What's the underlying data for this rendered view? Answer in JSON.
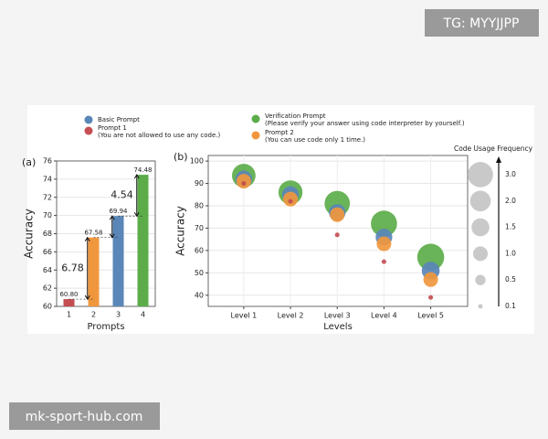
{
  "watermarks": [
    "TG: MYYJJPP",
    "mk-sport-hub.com"
  ],
  "chart_data": [
    {
      "type": "bar",
      "panel": "(a)",
      "xlabel": "Prompts",
      "ylabel": "Accuracy",
      "categories": [
        "1",
        "2",
        "3",
        "4"
      ],
      "values": [
        60.8,
        67.58,
        69.94,
        74.48
      ],
      "value_labels": [
        "60.80",
        "67.58",
        "69.94",
        "74.48"
      ],
      "colors": [
        "#c44e52",
        "#f0973d",
        "#5a86b8",
        "#5cad4a"
      ],
      "ylim": [
        60,
        76
      ],
      "yticks": [
        60,
        62,
        64,
        66,
        68,
        70,
        72,
        74,
        76
      ],
      "annotations": [
        "6.78",
        "4.54"
      ],
      "grid": true
    },
    {
      "type": "bubble",
      "panel": "(b)",
      "xlabel": "Levels",
      "ylabel": "Accuracy",
      "categories": [
        "Level 1",
        "Level 2",
        "Level 3",
        "Level 4",
        "Level 5"
      ],
      "ylim": [
        35,
        102.5
      ],
      "yticks": [
        40,
        50,
        60,
        70,
        80,
        90,
        100
      ],
      "grid": true,
      "series": [
        {
          "name": "Basic Prompt",
          "color": "#5a86b8",
          "values": [
            92,
            85,
            77,
            66,
            51
          ],
          "sizes": [
            1.3,
            1.3,
            1.3,
            1.3,
            1.5
          ]
        },
        {
          "name": "Prompt 1",
          "description": "(You are not allowed to use any code.)",
          "color": "#c44e52",
          "values": [
            90,
            82,
            67,
            55,
            39
          ],
          "sizes": [
            0.1,
            0.1,
            0.1,
            0.1,
            0.1
          ]
        },
        {
          "name": "Verification Prompt",
          "description": "(Please verify your answer using code interpreter by yourself.)",
          "color": "#5cad4a",
          "values": [
            93.5,
            86,
            81,
            72,
            57
          ],
          "sizes": [
            2.6,
            2.7,
            3.0,
            3.2,
            3.4
          ]
        },
        {
          "name": "Prompt 2",
          "description": "(You can use code only 1 time.)",
          "color": "#f0973d",
          "values": [
            91,
            83,
            76,
            63,
            47
          ],
          "sizes": [
            1.0,
            1.0,
            1.0,
            1.0,
            1.0
          ]
        }
      ],
      "size_legend": {
        "title": "Code Usage Frequency",
        "sizes": [
          {
            "value": 3,
            "label": "3.0"
          },
          {
            "value": 2,
            "label": "2.0"
          },
          {
            "value": 1.5,
            "label": "1.5"
          },
          {
            "value": 1,
            "label": "1.0"
          },
          {
            "value": 0.5,
            "label": "0.5"
          },
          0.1
        ]
      }
    }
  ]
}
